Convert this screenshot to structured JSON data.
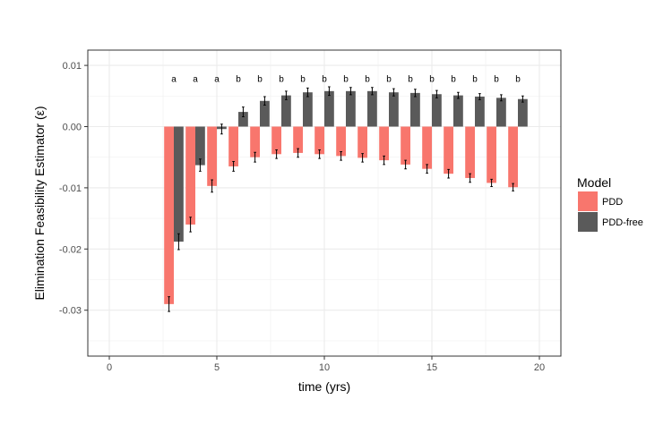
{
  "chart_data": {
    "type": "bar",
    "title": "",
    "xlabel": "time (yrs)",
    "ylabel": "Elimination Feasibility Estimator (ε)",
    "xlim": [
      -1,
      21
    ],
    "ylim": [
      -0.0375,
      0.0125
    ],
    "x_ticks": [
      0,
      5,
      10,
      15,
      20
    ],
    "x_tick_labels": [
      "0",
      "5",
      "10",
      "15",
      "20"
    ],
    "y_ticks": [
      0.01,
      0.0,
      -0.01,
      -0.02,
      -0.03
    ],
    "y_tick_labels": [
      "0.01",
      "0.00",
      "-0.01",
      "-0.02",
      "-0.03"
    ],
    "grid": true,
    "legend": {
      "title": "Model",
      "position": "right"
    },
    "x": [
      3,
      4,
      5,
      6,
      7,
      8,
      9,
      10,
      11,
      12,
      13,
      14,
      15,
      16,
      17,
      18,
      19
    ],
    "series": [
      {
        "name": "PDD",
        "color": "#F8766D",
        "values": [
          -0.029,
          -0.016,
          -0.0097,
          -0.0065,
          -0.005,
          -0.0045,
          -0.0043,
          -0.0045,
          -0.0048,
          -0.0051,
          -0.0055,
          -0.0062,
          -0.0069,
          -0.0077,
          -0.0084,
          -0.0092,
          -0.0099
        ],
        "errors": [
          0.0012,
          0.0012,
          0.001,
          0.0008,
          0.0008,
          0.0007,
          0.0007,
          0.0007,
          0.0007,
          0.0007,
          0.0007,
          0.0007,
          0.0007,
          0.0007,
          0.0007,
          0.0006,
          0.0006
        ]
      },
      {
        "name": "PDD-free",
        "color": "#5A5A5A",
        "values": [
          -0.0188,
          -0.0063,
          -0.0004,
          0.0024,
          0.0042,
          0.0051,
          0.0056,
          0.0058,
          0.0058,
          0.0058,
          0.0056,
          0.0055,
          0.0053,
          0.0051,
          0.0049,
          0.0047,
          0.0045
        ],
        "errors": [
          0.0013,
          0.001,
          0.0008,
          0.0008,
          0.0007,
          0.0007,
          0.0007,
          0.0007,
          0.0006,
          0.0006,
          0.0006,
          0.0006,
          0.0006,
          0.0005,
          0.0005,
          0.0005,
          0.0005
        ]
      }
    ],
    "annotations": {
      "y": 0.0079,
      "labels": [
        "a",
        "a",
        "a",
        "b",
        "b",
        "b",
        "b",
        "b",
        "b",
        "b",
        "b",
        "b",
        "b",
        "b",
        "b",
        "b",
        "b"
      ]
    }
  }
}
